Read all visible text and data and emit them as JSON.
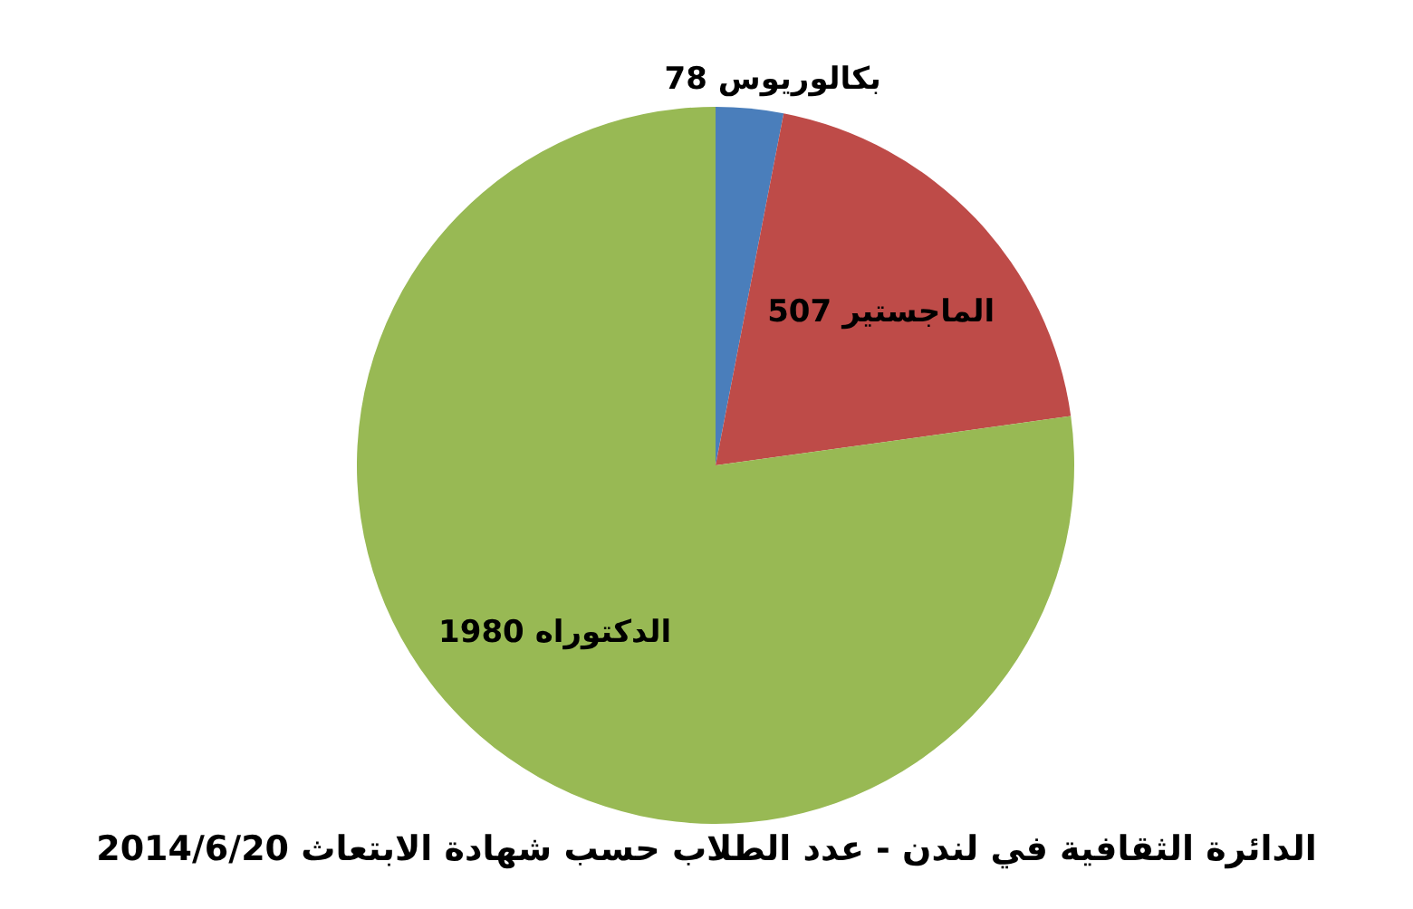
{
  "chart_data": {
    "type": "pie",
    "title": "الدائرة الثقافية في لندن - عدد الطلاب حسب شهادة الابتعاث 2014/6/20",
    "categories": [
      "بكالوريوس",
      "الماجستير",
      "الدكتوراه"
    ],
    "values": [
      78,
      507,
      1980
    ],
    "colors": [
      "#4a7ebb",
      "#be4b48",
      "#98b954"
    ],
    "data_labels": true
  }
}
